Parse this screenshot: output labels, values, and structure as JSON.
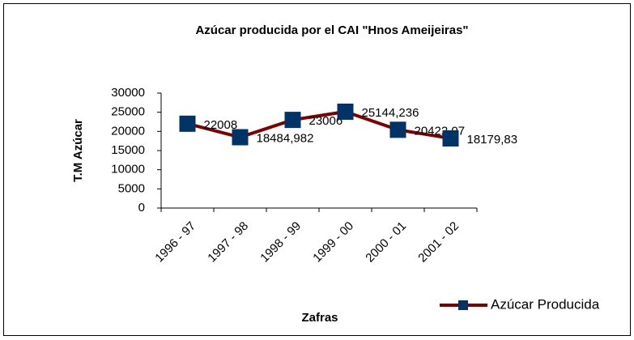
{
  "chart_data": {
    "type": "line",
    "title": "Azúcar producida por el CAI \"Hnos Ameijeiras\"",
    "y_label": "T.M Azúcar",
    "x_label": "Zafras",
    "categories": [
      "1996 - 97",
      "1997 - 98",
      "1998 - 99",
      "1999 - 00",
      "2000 - 01",
      "2001 - 02"
    ],
    "series": [
      {
        "name": "Azúcar Producida",
        "color": "#800000",
        "marker_color": "#003366",
        "values": [
          22008,
          18484.982,
          23006,
          25144.236,
          20422.07,
          18179.83
        ],
        "value_labels": [
          "22008",
          "18484,982",
          "23006",
          "25144,236",
          "20422,07",
          "18179,83"
        ]
      }
    ],
    "ylim": [
      0,
      30000
    ],
    "yticks": [
      0,
      5000,
      10000,
      15000,
      20000,
      25000,
      30000
    ],
    "legend": "bottom-right"
  }
}
